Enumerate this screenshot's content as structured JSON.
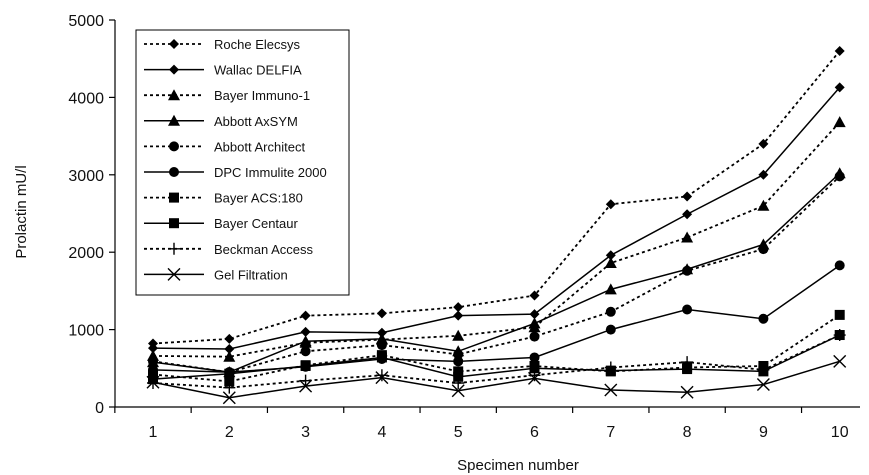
{
  "chart_data": {
    "type": "line",
    "title": "",
    "xlabel": "Specimen number",
    "ylabel": "Prolactin mU/l",
    "x": [
      1,
      2,
      3,
      4,
      5,
      6,
      7,
      8,
      9,
      10
    ],
    "xlim": [
      0.5,
      10.5
    ],
    "ylim": [
      0,
      5000
    ],
    "yticks": [
      0,
      1000,
      2000,
      3000,
      4000,
      5000
    ],
    "grid": false,
    "legend_position": "top-left",
    "series": [
      {
        "name": "Roche Elecsys",
        "marker": "diamond",
        "line": "dotted",
        "values": [
          820,
          880,
          1180,
          1210,
          1290,
          1440,
          2620,
          2720,
          3400,
          4600
        ]
      },
      {
        "name": "Wallac DELFIA",
        "marker": "diamond",
        "line": "solid",
        "values": [
          760,
          750,
          970,
          960,
          1180,
          1200,
          1960,
          2490,
          3000,
          4130
        ]
      },
      {
        "name": "Bayer Immuno-1",
        "marker": "triangle",
        "line": "dotted",
        "values": [
          660,
          650,
          830,
          870,
          920,
          1030,
          1860,
          2190,
          2600,
          3680
        ]
      },
      {
        "name": "Abbott AxSYM",
        "marker": "triangle",
        "line": "solid",
        "values": [
          580,
          450,
          850,
          880,
          720,
          1080,
          1520,
          1780,
          2100,
          3020
        ]
      },
      {
        "name": "Abbott Architect",
        "marker": "circle",
        "line": "dotted",
        "values": [
          590,
          450,
          720,
          800,
          680,
          910,
          1230,
          1760,
          2040,
          2980
        ]
      },
      {
        "name": "DPC Immulite 2000",
        "marker": "circle",
        "line": "solid",
        "values": [
          480,
          450,
          520,
          620,
          590,
          640,
          1000,
          1260,
          1140,
          1830
        ]
      },
      {
        "name": "Bayer ACS:180",
        "marker": "square",
        "line": "dotted",
        "values": [
          420,
          330,
          540,
          670,
          460,
          530,
          460,
          510,
          530,
          1190
        ]
      },
      {
        "name": "Bayer Centaur",
        "marker": "square",
        "line": "solid",
        "values": [
          360,
          430,
          530,
          640,
          390,
          500,
          470,
          490,
          460,
          930
        ]
      },
      {
        "name": "Beckman Access",
        "marker": "plus",
        "line": "dotted",
        "values": [
          310,
          250,
          340,
          410,
          310,
          410,
          510,
          580,
          480,
          930
        ]
      },
      {
        "name": "Gel Filtration",
        "marker": "cross",
        "line": "solid",
        "values": [
          320,
          120,
          270,
          380,
          210,
          370,
          220,
          190,
          290,
          590
        ]
      }
    ]
  }
}
